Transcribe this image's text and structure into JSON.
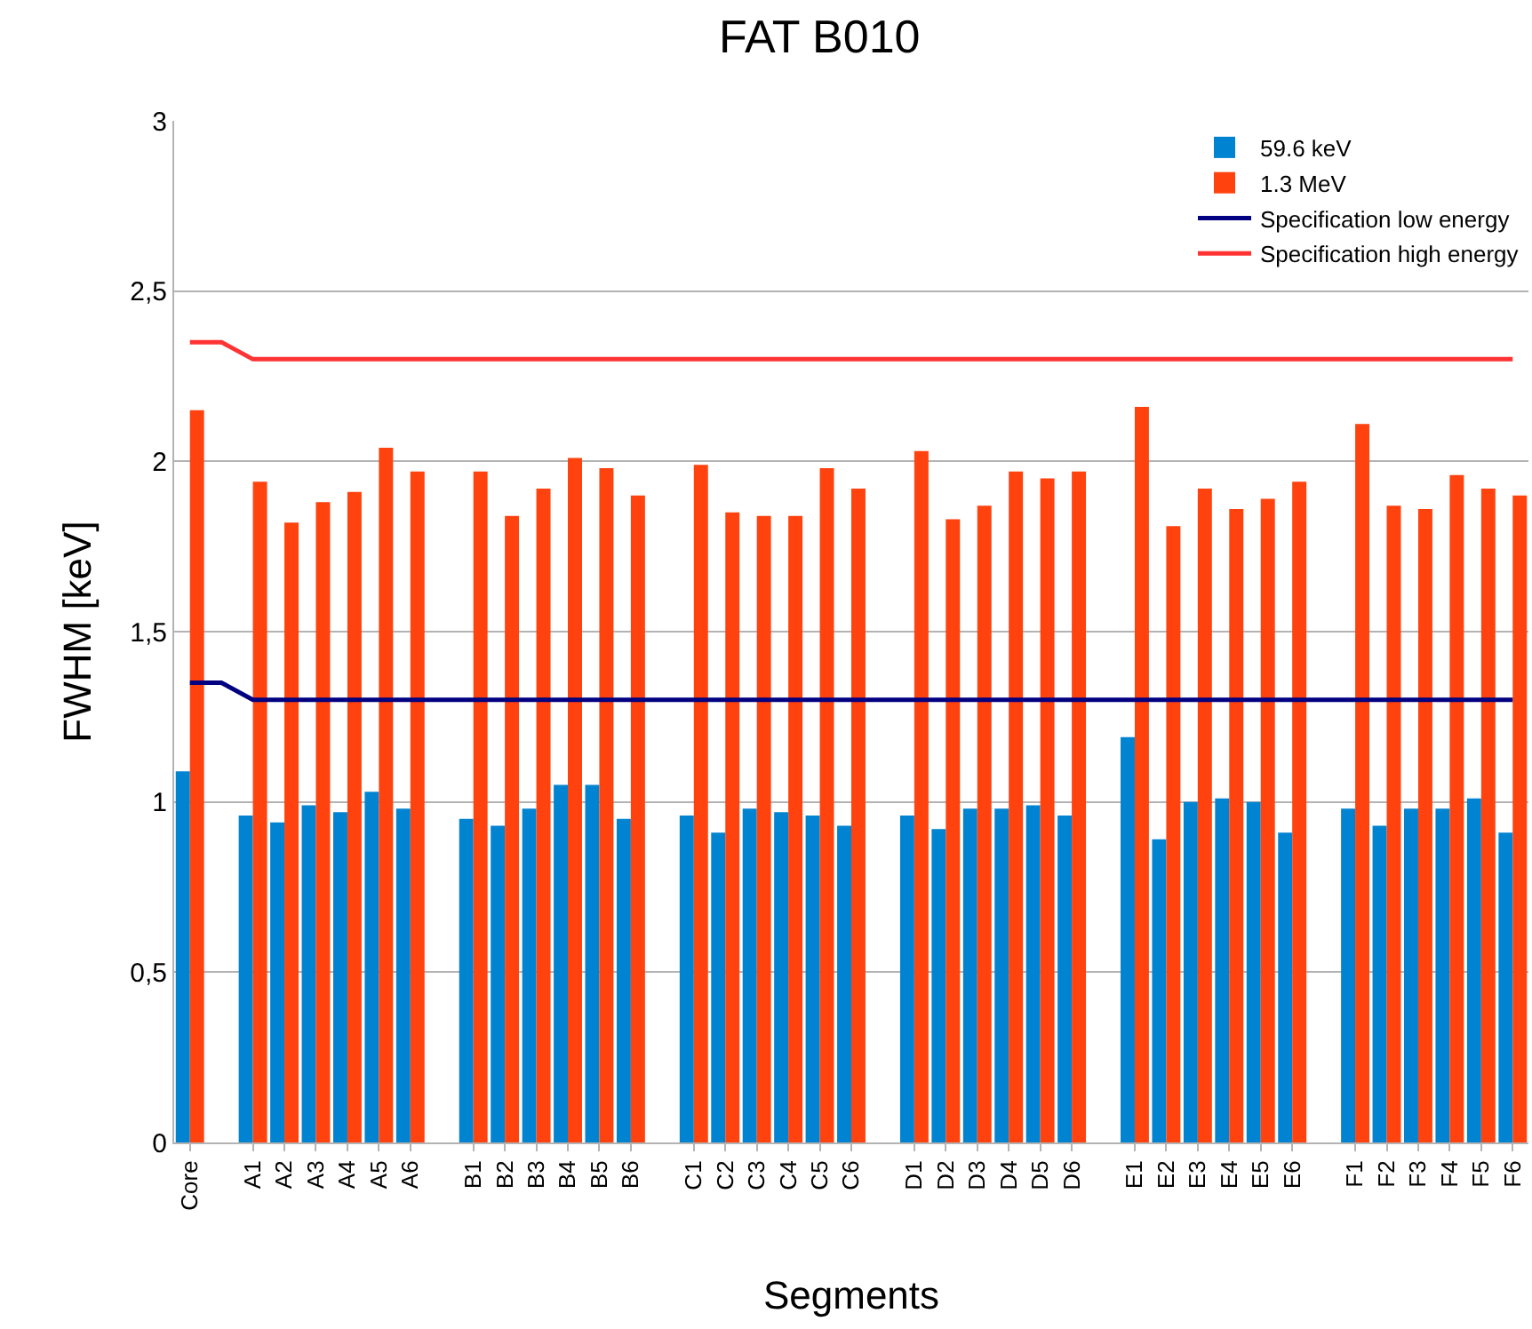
{
  "chart_data": {
    "type": "bar",
    "title": "FAT B010",
    "xlabel": "Segments",
    "ylabel": "FWHM [keV]",
    "categories": [
      "Core",
      null,
      "A1",
      "A2",
      "A3",
      "A4",
      "A5",
      "A6",
      null,
      "B1",
      "B2",
      "B3",
      "B4",
      "B5",
      "B6",
      null,
      "C1",
      "C2",
      "C3",
      "C4",
      "C5",
      "C6",
      null,
      "D1",
      "D2",
      "D3",
      "D4",
      "D5",
      "D6",
      null,
      "E1",
      "E2",
      "E3",
      "E4",
      "E5",
      "E6",
      null,
      "F1",
      "F2",
      "F3",
      "F4",
      "F5",
      "F6"
    ],
    "series": [
      {
        "name": "59.6 keV",
        "color": "#0084d1",
        "values": [
          1.09,
          null,
          0.96,
          0.94,
          0.99,
          0.97,
          1.03,
          0.98,
          null,
          0.95,
          0.93,
          0.98,
          1.05,
          1.05,
          0.95,
          null,
          0.96,
          0.91,
          0.98,
          0.97,
          0.96,
          0.93,
          null,
          0.96,
          0.92,
          0.98,
          0.98,
          0.99,
          0.96,
          null,
          1.19,
          0.89,
          1.0,
          1.01,
          1.0,
          0.91,
          null,
          0.98,
          0.93,
          0.98,
          0.98,
          1.01,
          0.91
        ]
      },
      {
        "name": "1.3 MeV",
        "color": "#ff420e",
        "values": [
          2.15,
          null,
          1.94,
          1.82,
          1.88,
          1.91,
          2.04,
          1.97,
          null,
          1.97,
          1.84,
          1.92,
          2.01,
          1.98,
          1.9,
          null,
          1.99,
          1.85,
          1.84,
          1.84,
          1.98,
          1.92,
          null,
          2.03,
          1.83,
          1.87,
          1.97,
          1.95,
          1.97,
          null,
          2.16,
          1.81,
          1.92,
          1.86,
          1.89,
          1.94,
          null,
          2.11,
          1.87,
          1.86,
          1.96,
          1.92,
          1.9
        ]
      },
      {
        "name": "Specification low energy",
        "type": "line",
        "color": "#000080",
        "values": [
          1.35,
          1.35,
          1.3,
          1.3,
          1.3,
          1.3,
          1.3,
          1.3,
          1.3,
          1.3,
          1.3,
          1.3,
          1.3,
          1.3,
          1.3,
          1.3,
          1.3,
          1.3,
          1.3,
          1.3,
          1.3,
          1.3,
          1.3,
          1.3,
          1.3,
          1.3,
          1.3,
          1.3,
          1.3,
          1.3,
          1.3,
          1.3,
          1.3,
          1.3,
          1.3,
          1.3,
          1.3,
          1.3,
          1.3,
          1.3,
          1.3,
          1.3,
          1.3
        ]
      },
      {
        "name": "Specification high energy",
        "type": "line",
        "color": "#ff3333",
        "values": [
          2.35,
          2.35,
          2.3,
          2.3,
          2.3,
          2.3,
          2.3,
          2.3,
          2.3,
          2.3,
          2.3,
          2.3,
          2.3,
          2.3,
          2.3,
          2.3,
          2.3,
          2.3,
          2.3,
          2.3,
          2.3,
          2.3,
          2.3,
          2.3,
          2.3,
          2.3,
          2.3,
          2.3,
          2.3,
          2.3,
          2.3,
          2.3,
          2.3,
          2.3,
          2.3,
          2.3,
          2.3,
          2.3,
          2.3,
          2.3,
          2.3,
          2.3,
          2.3
        ]
      }
    ],
    "ylim": [
      0,
      3
    ],
    "yticks": [
      0,
      {
        "value": 0.5,
        "label": "0,5"
      },
      1,
      {
        "value": 1.5,
        "label": "1,5"
      },
      2,
      {
        "value": 2.5,
        "label": "2,5"
      },
      3
    ],
    "grid": "y",
    "legend": "top right",
    "marker": "none",
    "line_style": "solid"
  }
}
